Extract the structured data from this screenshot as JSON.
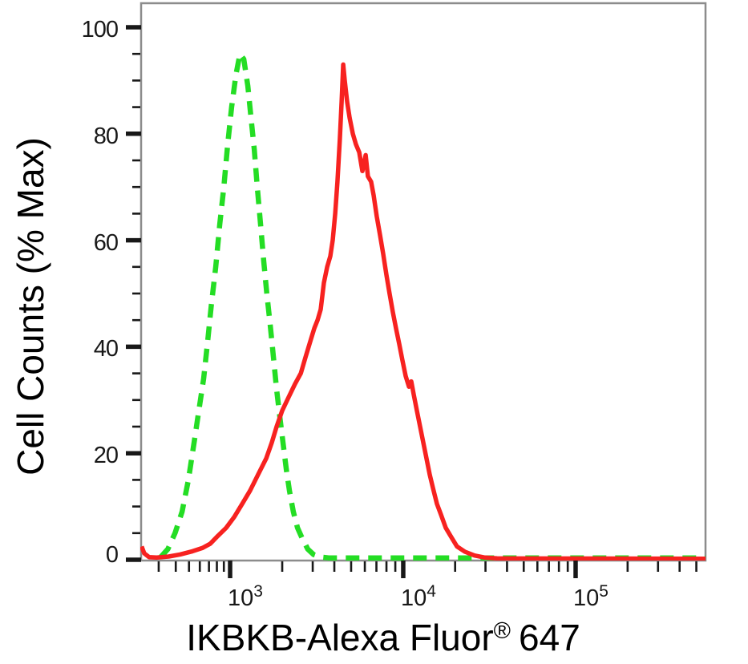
{
  "chart_data": {
    "type": "line",
    "title": "",
    "ylabel": "Cell Counts (% Max)",
    "xlabel": {
      "main": "IKBKB-Alexa Fluor",
      "registered": "®",
      "suffix": "647"
    },
    "grid": false,
    "legend": "none",
    "y_axis": {
      "min": 0,
      "max": 100,
      "major_ticks": [
        0,
        20,
        40,
        60,
        80,
        100
      ],
      "tick_labels": [
        "0",
        "20",
        "40",
        "60",
        "80",
        "100"
      ],
      "minor_ticks": [
        5,
        10,
        15,
        25,
        30,
        35,
        45,
        50,
        55,
        65,
        70,
        75,
        85,
        90,
        95
      ]
    },
    "x_axis": {
      "scale": "biexponential-log",
      "min": 220,
      "max": 565000,
      "major_ticks": [
        1000,
        10000,
        100000
      ],
      "major_tick_labels": [
        {
          "base": "10",
          "exp": "3"
        },
        {
          "base": "10",
          "exp": "4"
        },
        {
          "base": "10",
          "exp": "5"
        }
      ],
      "minor_ticks": [
        300,
        400,
        500,
        600,
        700,
        800,
        900,
        2000,
        3000,
        4000,
        5000,
        6000,
        7000,
        8000,
        9000,
        20000,
        30000,
        40000,
        50000,
        60000,
        70000,
        80000,
        90000,
        200000,
        300000,
        400000,
        500000
      ],
      "calibration": [
        [
          220,
          0
        ],
        [
          1000,
          0.1589
        ],
        [
          10000,
          0.4652
        ],
        [
          100000,
          0.7702
        ],
        [
          565000,
          1.0
        ]
      ]
    },
    "series": [
      {
        "name": "green-dashed-control",
        "style": "dashed",
        "color": "#24dd24",
        "points": [
          [
            310,
            0.5
          ],
          [
            350,
            2
          ],
          [
            395,
            5
          ],
          [
            445,
            9
          ],
          [
            495,
            15
          ],
          [
            545,
            22
          ],
          [
            590,
            28
          ],
          [
            640,
            34
          ],
          [
            685,
            41
          ],
          [
            730,
            48
          ],
          [
            785,
            55
          ],
          [
            840,
            63
          ],
          [
            900,
            70
          ],
          [
            960,
            78
          ],
          [
            1020,
            85
          ],
          [
            1080,
            91
          ],
          [
            1140,
            95
          ],
          [
            1200,
            94
          ],
          [
            1265,
            89
          ],
          [
            1320,
            83
          ],
          [
            1380,
            77
          ],
          [
            1435,
            70
          ],
          [
            1500,
            63
          ],
          [
            1565,
            56
          ],
          [
            1630,
            50
          ],
          [
            1705,
            44
          ],
          [
            1780,
            38
          ],
          [
            1855,
            32
          ],
          [
            1935,
            27
          ],
          [
            2020,
            22
          ],
          [
            2110,
            17
          ],
          [
            2200,
            13
          ],
          [
            2320,
            9
          ],
          [
            2450,
            6
          ],
          [
            2610,
            4
          ],
          [
            2810,
            2
          ],
          [
            3030,
            1
          ],
          [
            3340,
            0.5
          ],
          [
            3710,
            0.35
          ],
          [
            10000,
            0.35
          ],
          [
            565000,
            0.35
          ]
        ]
      },
      {
        "name": "red-solid-stained",
        "style": "solid",
        "color": "#f72220",
        "points": [
          [
            225,
            2.5
          ],
          [
            235,
            1.2
          ],
          [
            255,
            0.5
          ],
          [
            290,
            0.4
          ],
          [
            355,
            0.6
          ],
          [
            430,
            1
          ],
          [
            530,
            1.6
          ],
          [
            625,
            2.2
          ],
          [
            715,
            3
          ],
          [
            815,
            4.5
          ],
          [
            935,
            6
          ],
          [
            1055,
            8
          ],
          [
            1175,
            10.5
          ],
          [
            1305,
            13
          ],
          [
            1450,
            16
          ],
          [
            1615,
            19
          ],
          [
            1740,
            22
          ],
          [
            1855,
            25
          ],
          [
            2000,
            28
          ],
          [
            2175,
            30.5
          ],
          [
            2370,
            33
          ],
          [
            2560,
            35
          ],
          [
            2725,
            38
          ],
          [
            2905,
            41
          ],
          [
            3065,
            43.5
          ],
          [
            3200,
            45
          ],
          [
            3335,
            47
          ],
          [
            3480,
            52
          ],
          [
            3635,
            55
          ],
          [
            3790,
            57
          ],
          [
            3915,
            60
          ],
          [
            4045,
            65
          ],
          [
            4170,
            71
          ],
          [
            4305,
            79
          ],
          [
            4405,
            86
          ],
          [
            4500,
            93
          ],
          [
            4595,
            90
          ],
          [
            4740,
            86
          ],
          [
            4900,
            83
          ],
          [
            5115,
            80
          ],
          [
            5335,
            78
          ],
          [
            5570,
            76.5
          ],
          [
            5810,
            73
          ],
          [
            6070,
            76
          ],
          [
            6250,
            72
          ],
          [
            6520,
            71
          ],
          [
            6745,
            68.5
          ],
          [
            7030,
            64.5
          ],
          [
            7345,
            61
          ],
          [
            7655,
            57.5
          ],
          [
            8000,
            53.5
          ],
          [
            8335,
            50
          ],
          [
            8710,
            46.5
          ],
          [
            9080,
            43.5
          ],
          [
            9485,
            40.5
          ],
          [
            9890,
            37.5
          ],
          [
            10330,
            34.5
          ],
          [
            10790,
            32.5
          ],
          [
            11140,
            33.5
          ],
          [
            11510,
            31
          ],
          [
            12000,
            28
          ],
          [
            12530,
            25
          ],
          [
            13070,
            22
          ],
          [
            13650,
            19
          ],
          [
            14250,
            16
          ],
          [
            14860,
            13.5
          ],
          [
            15680,
            10.5
          ],
          [
            16550,
            8.5
          ],
          [
            17650,
            6
          ],
          [
            18790,
            4.5
          ],
          [
            20500,
            2.5
          ],
          [
            22800,
            1.5
          ],
          [
            25900,
            0.8
          ],
          [
            29800,
            0.4
          ],
          [
            35000,
            0.25
          ],
          [
            565000,
            0.2
          ]
        ]
      }
    ],
    "colors": {
      "plot_border": "#8c8c8c",
      "tick": "#181818",
      "text": "#000000"
    }
  }
}
